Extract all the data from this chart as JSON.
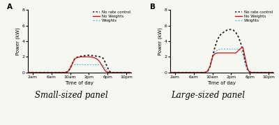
{
  "title_A": "Small-sized panel",
  "title_B": "Large-sized panel",
  "label_A": "A",
  "label_B": "B",
  "ylabel": "Power (kW)",
  "xlabel": "Time of day",
  "xtick_labels": [
    "2am",
    "6am",
    "10am",
    "2pm",
    "6pm",
    "10pm"
  ],
  "xtick_positions": [
    2,
    6,
    10,
    14,
    18,
    22
  ],
  "ylim": [
    0,
    8
  ],
  "xlim": [
    1,
    23
  ],
  "legend_labels": [
    "No rate control",
    "No Weights",
    "Weights"
  ],
  "colors": {
    "no_rate": "#222222",
    "no_weights": "#cc1111",
    "weights": "#55bbdd"
  },
  "bg_color": "#f7f7f2",
  "panel_A": {
    "no_rate": {
      "x": [
        1,
        7.5,
        8.5,
        9.0,
        9.5,
        10.0,
        10.5,
        11.0,
        11.5,
        12.0,
        12.5,
        13.0,
        13.5,
        14.0,
        14.5,
        15.0,
        15.5,
        16.0,
        16.5,
        17.0,
        17.5,
        18.0,
        18.5,
        19.0,
        23
      ],
      "y": [
        0,
        0,
        0.0,
        0.02,
        0.1,
        0.5,
        1.2,
        1.75,
        1.95,
        2.05,
        2.1,
        2.15,
        2.2,
        2.2,
        2.18,
        2.15,
        2.1,
        2.05,
        2.0,
        1.85,
        1.3,
        0.6,
        0.1,
        0.0,
        0
      ]
    },
    "no_weights": {
      "x": [
        1,
        7.5,
        8.5,
        9.0,
        9.5,
        10.0,
        10.5,
        11.0,
        11.5,
        12.0,
        12.5,
        13.0,
        13.5,
        14.0,
        14.5,
        15.0,
        15.5,
        16.0,
        16.5,
        17.0,
        17.5,
        18.0,
        18.5,
        19.0,
        23
      ],
      "y": [
        0,
        0,
        0.0,
        0.02,
        0.1,
        0.5,
        1.2,
        1.75,
        1.92,
        1.97,
        2.0,
        2.0,
        2.0,
        2.0,
        1.98,
        1.92,
        1.8,
        1.6,
        1.2,
        0.7,
        0.2,
        0.02,
        0.0,
        0.0,
        0
      ]
    },
    "weights": {
      "x": [
        1,
        8.5,
        9.0,
        9.5,
        10.0,
        10.5,
        11.0,
        11.5,
        12.0,
        12.5,
        13.0,
        13.5,
        14.0,
        14.5,
        15.0,
        15.5,
        16.0,
        16.5,
        17.0,
        17.5,
        18.0,
        18.5,
        19.0,
        23
      ],
      "y": [
        0,
        0.0,
        0.02,
        0.15,
        0.65,
        0.95,
        1.0,
        1.0,
        1.0,
        1.0,
        1.0,
        1.0,
        1.0,
        1.0,
        1.0,
        1.0,
        1.0,
        1.0,
        0.95,
        0.6,
        0.15,
        0.02,
        0.0,
        0
      ]
    }
  },
  "panel_B": {
    "no_rate": {
      "x": [
        1,
        7.5,
        8.0,
        8.5,
        9.0,
        9.5,
        10.0,
        10.5,
        11.0,
        11.5,
        12.0,
        12.5,
        13.0,
        13.5,
        14.0,
        14.5,
        15.0,
        15.5,
        16.0,
        16.5,
        17.0,
        17.5,
        18.0,
        18.5,
        19.0,
        23
      ],
      "y": [
        0,
        0,
        0.0,
        0.02,
        0.2,
        0.8,
        2.0,
        3.2,
        4.1,
        4.7,
        5.0,
        5.2,
        5.4,
        5.5,
        5.5,
        5.4,
        5.1,
        4.6,
        3.8,
        2.8,
        1.4,
        0.4,
        0.05,
        0.0,
        0.0,
        0
      ]
    },
    "no_weights": {
      "x": [
        1,
        7.5,
        8.0,
        8.5,
        9.0,
        9.5,
        10.0,
        10.5,
        11.0,
        11.5,
        12.0,
        12.5,
        13.0,
        13.5,
        14.0,
        14.5,
        15.0,
        15.5,
        16.0,
        16.5,
        17.0,
        17.5,
        18.0,
        18.5,
        19.0,
        23
      ],
      "y": [
        0,
        0,
        0.0,
        0.02,
        0.2,
        0.8,
        2.0,
        2.4,
        2.5,
        2.5,
        2.5,
        2.5,
        2.5,
        2.5,
        2.5,
        2.5,
        2.5,
        2.8,
        3.1,
        3.2,
        1.8,
        0.4,
        0.02,
        0.0,
        0.0,
        0
      ]
    },
    "weights": {
      "x": [
        1,
        7.5,
        8.0,
        8.5,
        9.0,
        9.5,
        10.0,
        10.5,
        11.0,
        11.5,
        12.0,
        12.5,
        13.0,
        13.5,
        14.0,
        14.5,
        15.0,
        15.5,
        16.0,
        16.5,
        17.0,
        17.5,
        18.0,
        18.5,
        19.0,
        23
      ],
      "y": [
        0,
        0,
        0.0,
        0.02,
        0.2,
        0.8,
        2.0,
        2.6,
        2.85,
        2.95,
        3.0,
        3.0,
        3.0,
        3.0,
        3.0,
        3.0,
        3.0,
        3.0,
        2.85,
        2.3,
        1.0,
        0.2,
        0.02,
        0.0,
        0.0,
        0
      ]
    }
  }
}
